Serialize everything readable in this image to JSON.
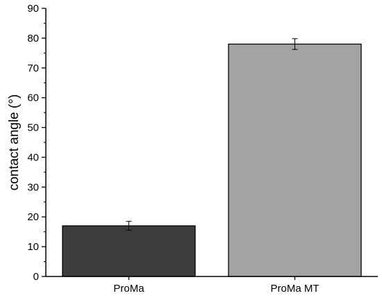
{
  "chart_data": {
    "type": "bar",
    "title": "",
    "xlabel": "",
    "ylabel": "contact angle (°)",
    "categories": [
      "ProMa",
      "ProMa MT"
    ],
    "values": [
      17,
      78
    ],
    "errors": [
      1.5,
      1.8
    ],
    "bar_colors": [
      "#3d3d3d",
      "#a3a3a3"
    ],
    "ylim": [
      0,
      90
    ],
    "yticks": [
      0,
      10,
      20,
      30,
      40,
      50,
      60,
      70,
      80,
      90
    ],
    "grid": false,
    "legend": "none"
  }
}
